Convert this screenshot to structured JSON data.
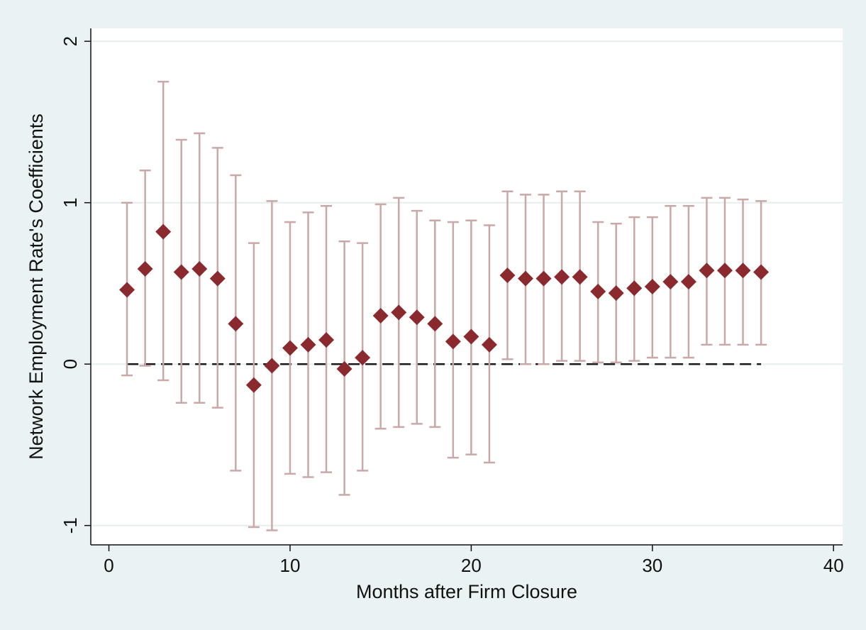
{
  "chart_data": {
    "type": "scatter",
    "title": "",
    "xlabel": "Months after Firm Closure",
    "ylabel": "Network Employment Rate's Coefficients",
    "xlim": [
      -1,
      40.5
    ],
    "ylim": [
      -1.12,
      2.08
    ],
    "xticks": [
      0,
      10,
      20,
      30,
      40
    ],
    "yticks": [
      -1,
      0,
      1,
      2
    ],
    "grid": "horizontal",
    "legend": "none",
    "colors": {
      "background": "#eaf2f3",
      "plot_background": "#ffffff",
      "marker": "#8b2a2e",
      "error_bar": "#c9a8a8",
      "gridline": "#e6eeee",
      "reference_line": "#1a1a1a"
    },
    "reference_line": {
      "y": 0,
      "x_from": 1,
      "x_to": 36,
      "style": "dashed"
    },
    "series": [
      {
        "marker": "diamond",
        "points": [
          {
            "x": 1,
            "y": 0.46,
            "lo": -0.07,
            "hi": 1.0
          },
          {
            "x": 2,
            "y": 0.59,
            "lo": -0.01,
            "hi": 1.2
          },
          {
            "x": 3,
            "y": 0.82,
            "lo": -0.1,
            "hi": 1.75
          },
          {
            "x": 4,
            "y": 0.57,
            "lo": -0.24,
            "hi": 1.39
          },
          {
            "x": 5,
            "y": 0.59,
            "lo": -0.24,
            "hi": 1.43
          },
          {
            "x": 6,
            "y": 0.53,
            "lo": -0.27,
            "hi": 1.34
          },
          {
            "x": 7,
            "y": 0.25,
            "lo": -0.66,
            "hi": 1.17
          },
          {
            "x": 8,
            "y": -0.13,
            "lo": -1.01,
            "hi": 0.75
          },
          {
            "x": 9,
            "y": -0.01,
            "lo": -1.03,
            "hi": 1.01
          },
          {
            "x": 10,
            "y": 0.1,
            "lo": -0.68,
            "hi": 0.88
          },
          {
            "x": 11,
            "y": 0.12,
            "lo": -0.7,
            "hi": 0.94
          },
          {
            "x": 12,
            "y": 0.15,
            "lo": -0.67,
            "hi": 0.98
          },
          {
            "x": 13,
            "y": -0.03,
            "lo": -0.81,
            "hi": 0.76
          },
          {
            "x": 14,
            "y": 0.04,
            "lo": -0.66,
            "hi": 0.75
          },
          {
            "x": 15,
            "y": 0.3,
            "lo": -0.4,
            "hi": 0.99
          },
          {
            "x": 16,
            "y": 0.32,
            "lo": -0.39,
            "hi": 1.03
          },
          {
            "x": 17,
            "y": 0.29,
            "lo": -0.37,
            "hi": 0.95
          },
          {
            "x": 18,
            "y": 0.25,
            "lo": -0.39,
            "hi": 0.89
          },
          {
            "x": 19,
            "y": 0.14,
            "lo": -0.58,
            "hi": 0.88
          },
          {
            "x": 20,
            "y": 0.17,
            "lo": -0.56,
            "hi": 0.89
          },
          {
            "x": 21,
            "y": 0.12,
            "lo": -0.61,
            "hi": 0.86
          },
          {
            "x": 22,
            "y": 0.55,
            "lo": 0.03,
            "hi": 1.07
          },
          {
            "x": 23,
            "y": 0.53,
            "lo": 0.0,
            "hi": 1.05
          },
          {
            "x": 24,
            "y": 0.53,
            "lo": 0.0,
            "hi": 1.05
          },
          {
            "x": 25,
            "y": 0.54,
            "lo": 0.02,
            "hi": 1.07
          },
          {
            "x": 26,
            "y": 0.54,
            "lo": 0.02,
            "hi": 1.07
          },
          {
            "x": 27,
            "y": 0.45,
            "lo": 0.01,
            "hi": 0.88
          },
          {
            "x": 28,
            "y": 0.44,
            "lo": 0.01,
            "hi": 0.87
          },
          {
            "x": 29,
            "y": 0.47,
            "lo": 0.02,
            "hi": 0.91
          },
          {
            "x": 30,
            "y": 0.48,
            "lo": 0.04,
            "hi": 0.91
          },
          {
            "x": 31,
            "y": 0.51,
            "lo": 0.04,
            "hi": 0.98
          },
          {
            "x": 32,
            "y": 0.51,
            "lo": 0.04,
            "hi": 0.98
          },
          {
            "x": 33,
            "y": 0.58,
            "lo": 0.12,
            "hi": 1.03
          },
          {
            "x": 34,
            "y": 0.58,
            "lo": 0.12,
            "hi": 1.03
          },
          {
            "x": 35,
            "y": 0.58,
            "lo": 0.12,
            "hi": 1.02
          },
          {
            "x": 36,
            "y": 0.57,
            "lo": 0.12,
            "hi": 1.01
          }
        ]
      }
    ]
  }
}
